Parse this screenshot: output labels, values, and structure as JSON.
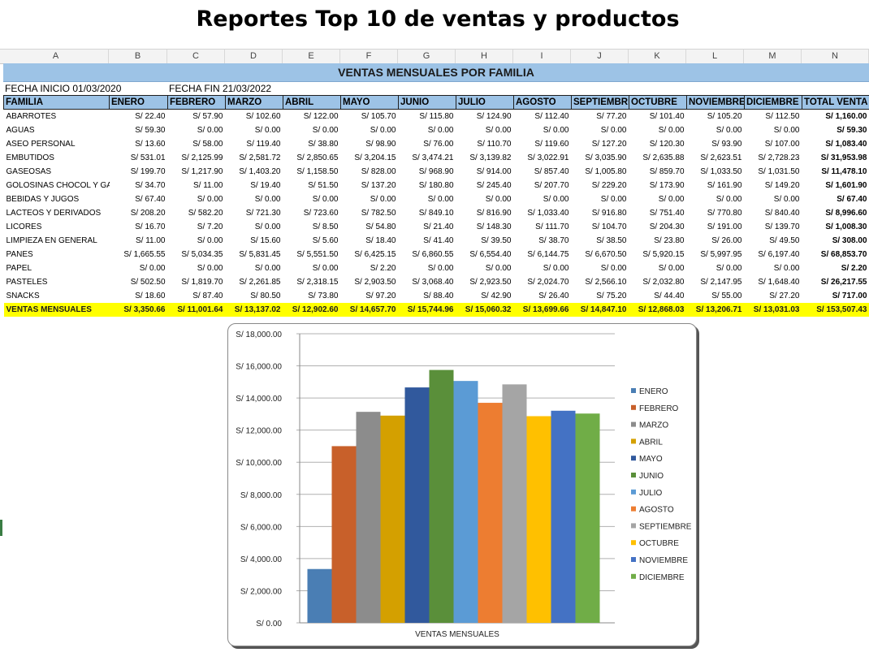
{
  "page_title": "Reportes Top 10 de ventas y productos",
  "column_letters": [
    "A",
    "B",
    "C",
    "D",
    "E",
    "F",
    "G",
    "H",
    "I",
    "J",
    "K",
    "L",
    "M",
    "N"
  ],
  "banner": "VENTAS MENSUALES POR FAMILIA",
  "fecha_inicio": "FECHA INICIO  01/03/2020",
  "fecha_fin": "FECHA FIN  21/03/2022",
  "table": {
    "headers": [
      "FAMILIA",
      "ENERO",
      "FEBRERO",
      "MARZO",
      "ABRIL",
      "MAYO",
      "JUNIO",
      "JULIO",
      "AGOSTO",
      "SEPTIEMBRE",
      "OCTUBRE",
      "NOVIEMBRE",
      "DICIEMBRE",
      "TOTAL VENTA"
    ],
    "rows": [
      [
        "ABARROTES",
        "S/ 22.40",
        "S/ 57.90",
        "S/ 102.60",
        "S/ 122.00",
        "S/ 105.70",
        "S/ 115.80",
        "S/ 124.90",
        "S/ 112.40",
        "S/ 77.20",
        "S/ 101.40",
        "S/ 105.20",
        "S/ 112.50",
        "S/ 1,160.00"
      ],
      [
        "AGUAS",
        "S/ 59.30",
        "S/ 0.00",
        "S/ 0.00",
        "S/ 0.00",
        "S/ 0.00",
        "S/ 0.00",
        "S/ 0.00",
        "S/ 0.00",
        "S/ 0.00",
        "S/ 0.00",
        "S/ 0.00",
        "S/ 0.00",
        "S/ 59.30"
      ],
      [
        "ASEO PERSONAL",
        "S/ 13.60",
        "S/ 58.00",
        "S/ 119.40",
        "S/ 38.80",
        "S/ 98.90",
        "S/ 76.00",
        "S/ 110.70",
        "S/ 119.60",
        "S/ 127.20",
        "S/ 120.30",
        "S/ 93.90",
        "S/ 107.00",
        "S/ 1,083.40"
      ],
      [
        "EMBUTIDOS",
        "S/ 531.01",
        "S/ 2,125.99",
        "S/ 2,581.72",
        "S/ 2,850.65",
        "S/ 3,204.15",
        "S/ 3,474.21",
        "S/ 3,139.82",
        "S/ 3,022.91",
        "S/ 3,035.90",
        "S/ 2,635.88",
        "S/ 2,623.51",
        "S/ 2,728.23",
        "S/ 31,953.98"
      ],
      [
        "GASEOSAS",
        "S/ 199.70",
        "S/ 1,217.90",
        "S/ 1,403.20",
        "S/ 1,158.50",
        "S/ 828.00",
        "S/ 968.90",
        "S/ 914.00",
        "S/ 857.40",
        "S/ 1,005.80",
        "S/ 859.70",
        "S/ 1,033.50",
        "S/ 1,031.50",
        "S/ 11,478.10"
      ],
      [
        "GOLOSINAS CHOCOL Y GALLE",
        "S/ 34.70",
        "S/ 11.00",
        "S/ 19.40",
        "S/ 51.50",
        "S/ 137.20",
        "S/ 180.80",
        "S/ 245.40",
        "S/ 207.70",
        "S/ 229.20",
        "S/ 173.90",
        "S/ 161.90",
        "S/ 149.20",
        "S/ 1,601.90"
      ],
      [
        "BEBIDAS Y JUGOS",
        "S/ 67.40",
        "S/ 0.00",
        "S/ 0.00",
        "S/ 0.00",
        "S/ 0.00",
        "S/ 0.00",
        "S/ 0.00",
        "S/ 0.00",
        "S/ 0.00",
        "S/ 0.00",
        "S/ 0.00",
        "S/ 0.00",
        "S/ 67.40"
      ],
      [
        "LACTEOS Y DERIVADOS",
        "S/ 208.20",
        "S/ 582.20",
        "S/ 721.30",
        "S/ 723.60",
        "S/ 782.50",
        "S/ 849.10",
        "S/ 816.90",
        "S/ 1,033.40",
        "S/ 916.80",
        "S/ 751.40",
        "S/ 770.80",
        "S/ 840.40",
        "S/ 8,996.60"
      ],
      [
        "LICORES",
        "S/ 16.70",
        "S/ 7.20",
        "S/ 0.00",
        "S/ 8.50",
        "S/ 54.80",
        "S/ 21.40",
        "S/ 148.30",
        "S/ 111.70",
        "S/ 104.70",
        "S/ 204.30",
        "S/ 191.00",
        "S/ 139.70",
        "S/ 1,008.30"
      ],
      [
        "LIMPIEZA EN GENERAL",
        "S/ 11.00",
        "S/ 0.00",
        "S/ 15.60",
        "S/ 5.60",
        "S/ 18.40",
        "S/ 41.40",
        "S/ 39.50",
        "S/ 38.70",
        "S/ 38.50",
        "S/ 23.80",
        "S/ 26.00",
        "S/ 49.50",
        "S/ 308.00"
      ],
      [
        "PANES",
        "S/ 1,665.55",
        "S/ 5,034.35",
        "S/ 5,831.45",
        "S/ 5,551.50",
        "S/ 6,425.15",
        "S/ 6,860.55",
        "S/ 6,554.40",
        "S/ 6,144.75",
        "S/ 6,670.50",
        "S/ 5,920.15",
        "S/ 5,997.95",
        "S/ 6,197.40",
        "S/ 68,853.70"
      ],
      [
        "PAPEL",
        "S/ 0.00",
        "S/ 0.00",
        "S/ 0.00",
        "S/ 0.00",
        "S/ 2.20",
        "S/ 0.00",
        "S/ 0.00",
        "S/ 0.00",
        "S/ 0.00",
        "S/ 0.00",
        "S/ 0.00",
        "S/ 0.00",
        "S/ 2.20"
      ],
      [
        "PASTELES",
        "S/ 502.50",
        "S/ 1,819.70",
        "S/ 2,261.85",
        "S/ 2,318.15",
        "S/ 2,903.50",
        "S/ 3,068.40",
        "S/ 2,923.50",
        "S/ 2,024.70",
        "S/ 2,566.10",
        "S/ 2,032.80",
        "S/ 2,147.95",
        "S/ 1,648.40",
        "S/ 26,217.55"
      ],
      [
        "SNACKS",
        "S/ 18.60",
        "S/ 87.40",
        "S/ 80.50",
        "S/ 73.80",
        "S/ 97.20",
        "S/ 88.40",
        "S/ 42.90",
        "S/ 26.40",
        "S/ 75.20",
        "S/ 44.40",
        "S/ 55.00",
        "S/ 27.20",
        "S/ 717.00"
      ]
    ],
    "totals": [
      "VENTAS MENSUALES",
      "S/ 3,350.66",
      "S/ 11,001.64",
      "S/ 13,137.02",
      "S/ 12,902.60",
      "S/ 14,657.70",
      "S/ 15,744.96",
      "S/ 15,060.32",
      "S/ 13,699.66",
      "S/ 14,847.10",
      "S/ 12,868.03",
      "S/ 13,206.71",
      "S/ 13,031.03",
      "S/ 153,507.43"
    ]
  },
  "chart_data": {
    "type": "bar",
    "categories": [
      "VENTAS MENSUALES"
    ],
    "xlabel": "VENTAS MENSUALES",
    "ylim": [
      0,
      18000
    ],
    "yticks": [
      0,
      2000,
      4000,
      6000,
      8000,
      10000,
      12000,
      14000,
      16000,
      18000
    ],
    "ytick_labels": [
      "S/ 0.00",
      "S/ 2,000.00",
      "S/ 4,000.00",
      "S/ 6,000.00",
      "S/ 8,000.00",
      "S/ 10,000.00",
      "S/ 12,000.00",
      "S/ 14,000.00",
      "S/ 16,000.00",
      "S/ 18,000.00"
    ],
    "grid": true,
    "legend": "right",
    "series": [
      {
        "name": "ENERO",
        "values": [
          3350.66
        ],
        "color": "#4a7eb4"
      },
      {
        "name": "FEBRERO",
        "values": [
          11001.64
        ],
        "color": "#c8602a"
      },
      {
        "name": "MARZO",
        "values": [
          13137.02
        ],
        "color": "#8c8c8c"
      },
      {
        "name": "ABRIL",
        "values": [
          12902.6
        ],
        "color": "#d4a000"
      },
      {
        "name": "MAYO",
        "values": [
          14657.7
        ],
        "color": "#31599d"
      },
      {
        "name": "JUNIO",
        "values": [
          15744.96
        ],
        "color": "#5a8f3a"
      },
      {
        "name": "JULIO",
        "values": [
          15060.32
        ],
        "color": "#5b9bd5"
      },
      {
        "name": "AGOSTO",
        "values": [
          13699.66
        ],
        "color": "#ed7d31"
      },
      {
        "name": "SEPTIEMBRE",
        "values": [
          14847.1
        ],
        "color": "#a5a5a5"
      },
      {
        "name": "OCTUBRE",
        "values": [
          12868.03
        ],
        "color": "#ffc000"
      },
      {
        "name": "NOVIEMBRE",
        "values": [
          13206.71
        ],
        "color": "#4472c4"
      },
      {
        "name": "DICIEMBRE",
        "values": [
          13031.03
        ],
        "color": "#70ad47"
      }
    ]
  }
}
